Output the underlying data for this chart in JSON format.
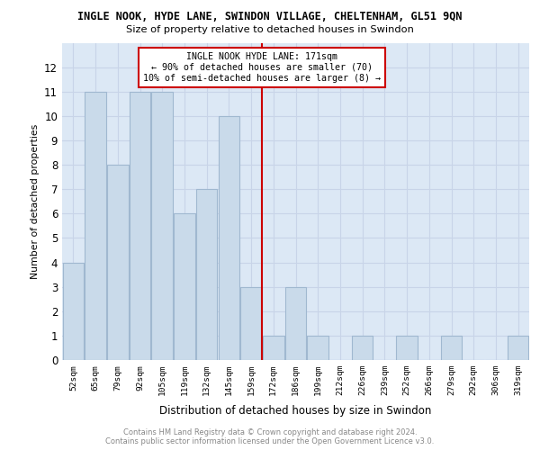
{
  "title": "INGLE NOOK, HYDE LANE, SWINDON VILLAGE, CHELTENHAM, GL51 9QN",
  "subtitle": "Size of property relative to detached houses in Swindon",
  "xlabel": "Distribution of detached houses by size in Swindon",
  "ylabel": "Number of detached properties",
  "categories": [
    "52sqm",
    "65sqm",
    "79sqm",
    "92sqm",
    "105sqm",
    "119sqm",
    "132sqm",
    "145sqm",
    "159sqm",
    "172sqm",
    "186sqm",
    "199sqm",
    "212sqm",
    "226sqm",
    "239sqm",
    "252sqm",
    "266sqm",
    "279sqm",
    "292sqm",
    "306sqm",
    "319sqm"
  ],
  "values": [
    4,
    11,
    8,
    11,
    11,
    6,
    7,
    10,
    3,
    1,
    3,
    1,
    0,
    1,
    0,
    1,
    0,
    1,
    0,
    0,
    1
  ],
  "bar_color": "#c9daea",
  "bar_edgecolor": "#a0b8d0",
  "vline_index": 9,
  "vline_color": "#cc0000",
  "annotation_line1": "INGLE NOOK HYDE LANE: 171sqm",
  "annotation_line2": "← 90% of detached houses are smaller (70)",
  "annotation_line3": "10% of semi-detached houses are larger (8) →",
  "annotation_box_edgecolor": "#cc0000",
  "ylim": [
    0,
    13
  ],
  "yticks": [
    0,
    1,
    2,
    3,
    4,
    5,
    6,
    7,
    8,
    9,
    10,
    11,
    12
  ],
  "grid_color": "#c8d4e8",
  "chart_bg_color": "#dce8f5",
  "footer_text": "Contains HM Land Registry data © Crown copyright and database right 2024.\nContains public sector information licensed under the Open Government Licence v3.0."
}
